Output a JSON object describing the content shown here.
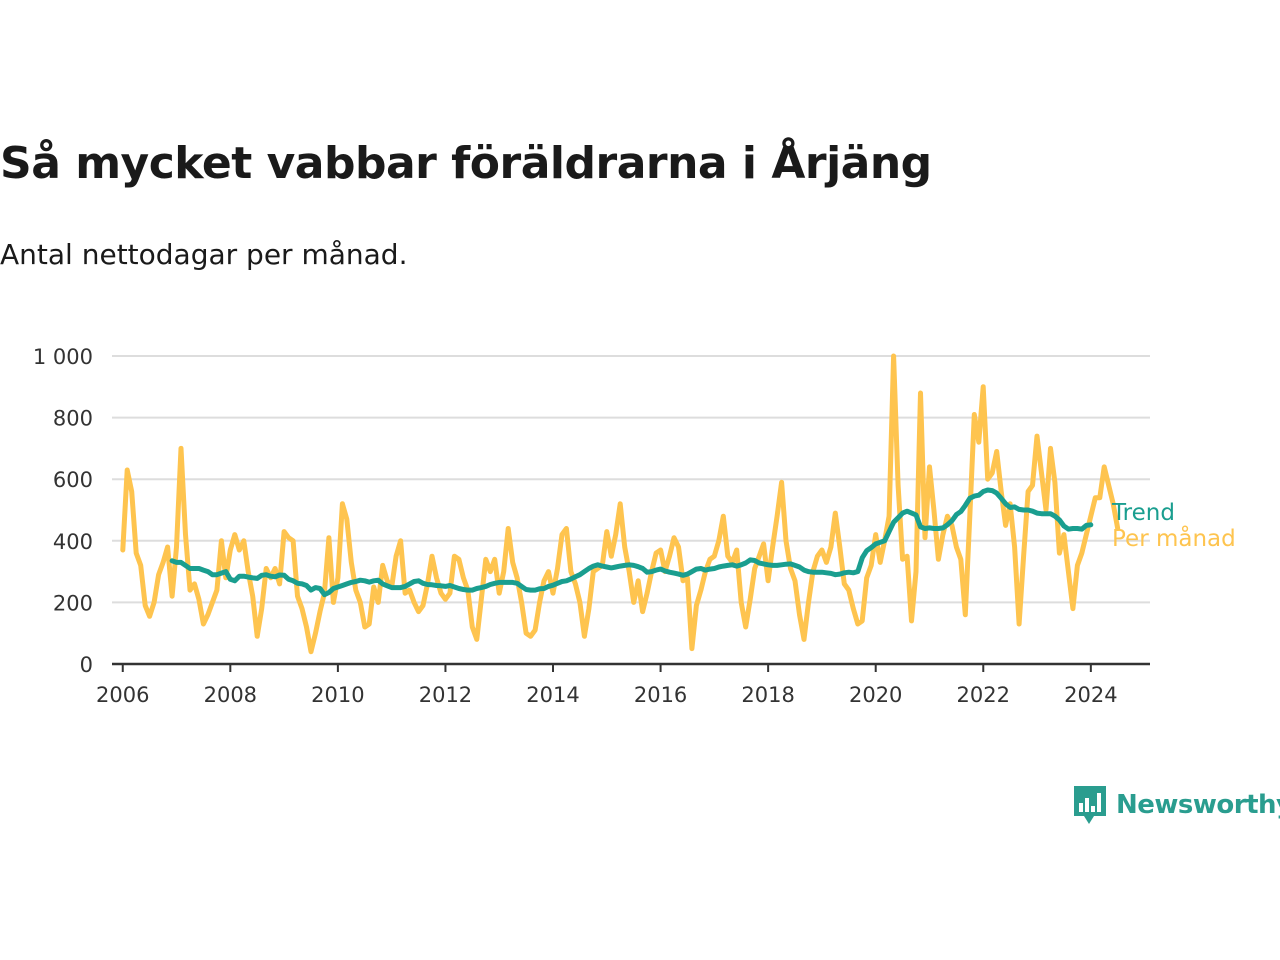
{
  "title": "Så mycket vabbar föräldrarna i Årjäng",
  "subtitle": "Antal nettodagar per månad.",
  "logo": {
    "text": "Newsworthy",
    "icon": "bar-chart-speech-bubble-icon",
    "color": "#2a9d8f"
  },
  "chart_data": {
    "type": "line",
    "title": "Så mycket vabbar föräldrarna i Årjäng",
    "subtitle": "Antal nettodagar per månad.",
    "xlabel": "",
    "ylabel": "",
    "xlim": [
      2005.8,
      2025.1
    ],
    "ylim": [
      0,
      1000
    ],
    "x_ticks": [
      2006,
      2008,
      2010,
      2012,
      2014,
      2016,
      2018,
      2020,
      2022,
      2024
    ],
    "y_ticks": [
      0,
      200,
      400,
      600,
      800,
      1000
    ],
    "y_tick_labels": [
      "0",
      "200",
      "400",
      "600",
      "800",
      "1 000"
    ],
    "grid": "horizontal",
    "legend": "inline-right",
    "series": [
      {
        "name": "Per månad",
        "color": "#fec44f",
        "x_start": 2006.0,
        "x_step": 0.08333,
        "values": [
          370,
          630,
          560,
          360,
          320,
          190,
          155,
          200,
          290,
          330,
          380,
          220,
          380,
          700,
          420,
          240,
          260,
          210,
          130,
          160,
          200,
          240,
          400,
          280,
          370,
          420,
          370,
          400,
          300,
          220,
          90,
          180,
          310,
          280,
          310,
          260,
          430,
          410,
          400,
          220,
          180,
          120,
          40,
          100,
          170,
          230,
          410,
          200,
          280,
          520,
          470,
          330,
          240,
          200,
          120,
          130,
          250,
          200,
          320,
          270,
          250,
          350,
          400,
          230,
          240,
          200,
          170,
          190,
          260,
          350,
          280,
          230,
          210,
          230,
          350,
          340,
          280,
          240,
          120,
          80,
          210,
          340,
          300,
          340,
          230,
          300,
          440,
          330,
          280,
          200,
          100,
          90,
          110,
          200,
          270,
          300,
          230,
          310,
          420,
          440,
          300,
          260,
          200,
          90,
          180,
          300,
          310,
          320,
          430,
          350,
          420,
          520,
          380,
          300,
          200,
          270,
          170,
          230,
          300,
          360,
          370,
          300,
          350,
          410,
          380,
          270,
          280,
          50,
          190,
          240,
          300,
          340,
          350,
          400,
          480,
          350,
          330,
          370,
          200,
          120,
          210,
          310,
          350,
          390,
          270,
          380,
          480,
          590,
          400,
          310,
          270,
          160,
          80,
          200,
          300,
          350,
          370,
          330,
          380,
          490,
          380,
          260,
          240,
          180,
          130,
          140,
          280,
          320,
          420,
          330,
          400,
          480,
          1000,
          580,
          340,
          350,
          140,
          300,
          880,
          410,
          640,
          500,
          340,
          420,
          480,
          450,
          380,
          340,
          160,
          480,
          810,
          720,
          900,
          600,
          620,
          690,
          560,
          450,
          520,
          380,
          130,
          350,
          560,
          580,
          740,
          620,
          500,
          700,
          590,
          360,
          420,
          300,
          180,
          320,
          360,
          420,
          480,
          540,
          540,
          640,
          580,
          520,
          440
        ]
      },
      {
        "name": "Trend",
        "color": "#1a9e8f",
        "x_start": 2006.917,
        "x_step": 0.08333,
        "values": [
          335,
          330,
          330,
          320,
          310,
          310,
          310,
          305,
          300,
          290,
          290,
          295,
          300,
          275,
          270,
          285,
          285,
          282,
          280,
          278,
          288,
          290,
          285,
          283,
          289,
          288,
          275,
          270,
          262,
          260,
          255,
          240,
          248,
          245,
          225,
          232,
          245,
          250,
          255,
          260,
          265,
          268,
          272,
          270,
          266,
          270,
          272,
          260,
          254,
          248,
          248,
          248,
          252,
          260,
          268,
          270,
          262,
          258,
          257,
          255,
          254,
          252,
          255,
          250,
          245,
          242,
          240,
          240,
          245,
          248,
          252,
          258,
          262,
          265,
          265,
          265,
          265,
          262,
          252,
          242,
          240,
          240,
          244,
          245,
          252,
          256,
          262,
          268,
          270,
          276,
          283,
          290,
          300,
          310,
          318,
          322,
          318,
          315,
          312,
          315,
          318,
          320,
          322,
          320,
          316,
          310,
          298,
          300,
          305,
          308,
          302,
          298,
          295,
          292,
          288,
          292,
          300,
          308,
          310,
          305,
          308,
          310,
          315,
          318,
          320,
          322,
          318,
          322,
          328,
          338,
          336,
          328,
          325,
          322,
          320,
          320,
          322,
          324,
          325,
          320,
          315,
          305,
          300,
          298,
          298,
          298,
          296,
          294,
          290,
          292,
          296,
          298,
          296,
          300,
          345,
          368,
          378,
          390,
          395,
          400,
          430,
          460,
          475,
          490,
          496,
          490,
          484,
          445,
          440,
          442,
          440,
          440,
          442,
          452,
          465,
          485,
          495,
          515,
          538,
          545,
          548,
          560,
          565,
          563,
          555,
          538,
          520,
          508,
          510,
          502,
          500,
          500,
          496,
          490,
          488,
          488,
          488,
          480,
          468,
          448,
          438,
          440,
          440,
          438,
          450,
          452
        ]
      }
    ]
  }
}
